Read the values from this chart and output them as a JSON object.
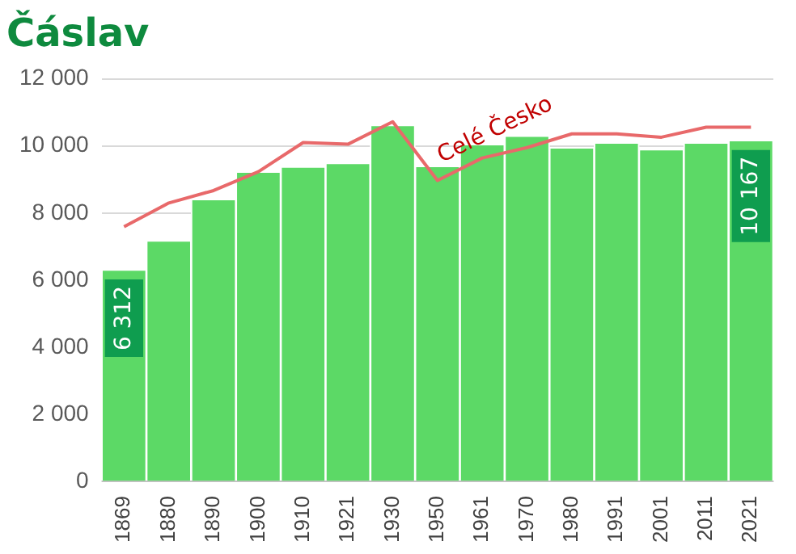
{
  "chart_data": {
    "type": "bar",
    "title": "Čáslav",
    "categories": [
      "1869",
      "1880",
      "1890",
      "1900",
      "1910",
      "1921",
      "1930",
      "1950",
      "1961",
      "1970",
      "1980",
      "1991",
      "2001",
      "2011",
      "2021"
    ],
    "series": [
      {
        "color": "#5cd966",
        "values": [
          6312,
          7180,
          8410,
          9230,
          9380,
          9490,
          10620,
          9400,
          10050,
          10300,
          9950,
          10100,
          9900,
          10100,
          10167
        ],
        "value_labels": [
          "6 312",
          null,
          null,
          null,
          null,
          null,
          null,
          null,
          null,
          null,
          null,
          null,
          null,
          null,
          "10 167"
        ]
      },
      {
        "type": "line",
        "name": "Celé Česko",
        "color": "#e8696a",
        "values": [
          7590,
          8300,
          8670,
          9230,
          10100,
          10050,
          10720,
          8970,
          9640,
          9950,
          10360,
          10360,
          10260,
          10560,
          10560
        ]
      }
    ],
    "ylim": [
      0,
      12000
    ],
    "yticks": [
      {
        "value": 0,
        "label": "0"
      },
      {
        "value": 2000,
        "label": "2 000"
      },
      {
        "value": 4000,
        "label": "4 000"
      },
      {
        "value": 6000,
        "label": "6 000"
      },
      {
        "value": 8000,
        "label": "8 000"
      },
      {
        "value": 10000,
        "label": "10 000"
      },
      {
        "value": 12000,
        "label": "12 000"
      }
    ],
    "grid": "y",
    "legend": false,
    "marker": "none",
    "line_style": "solid"
  }
}
